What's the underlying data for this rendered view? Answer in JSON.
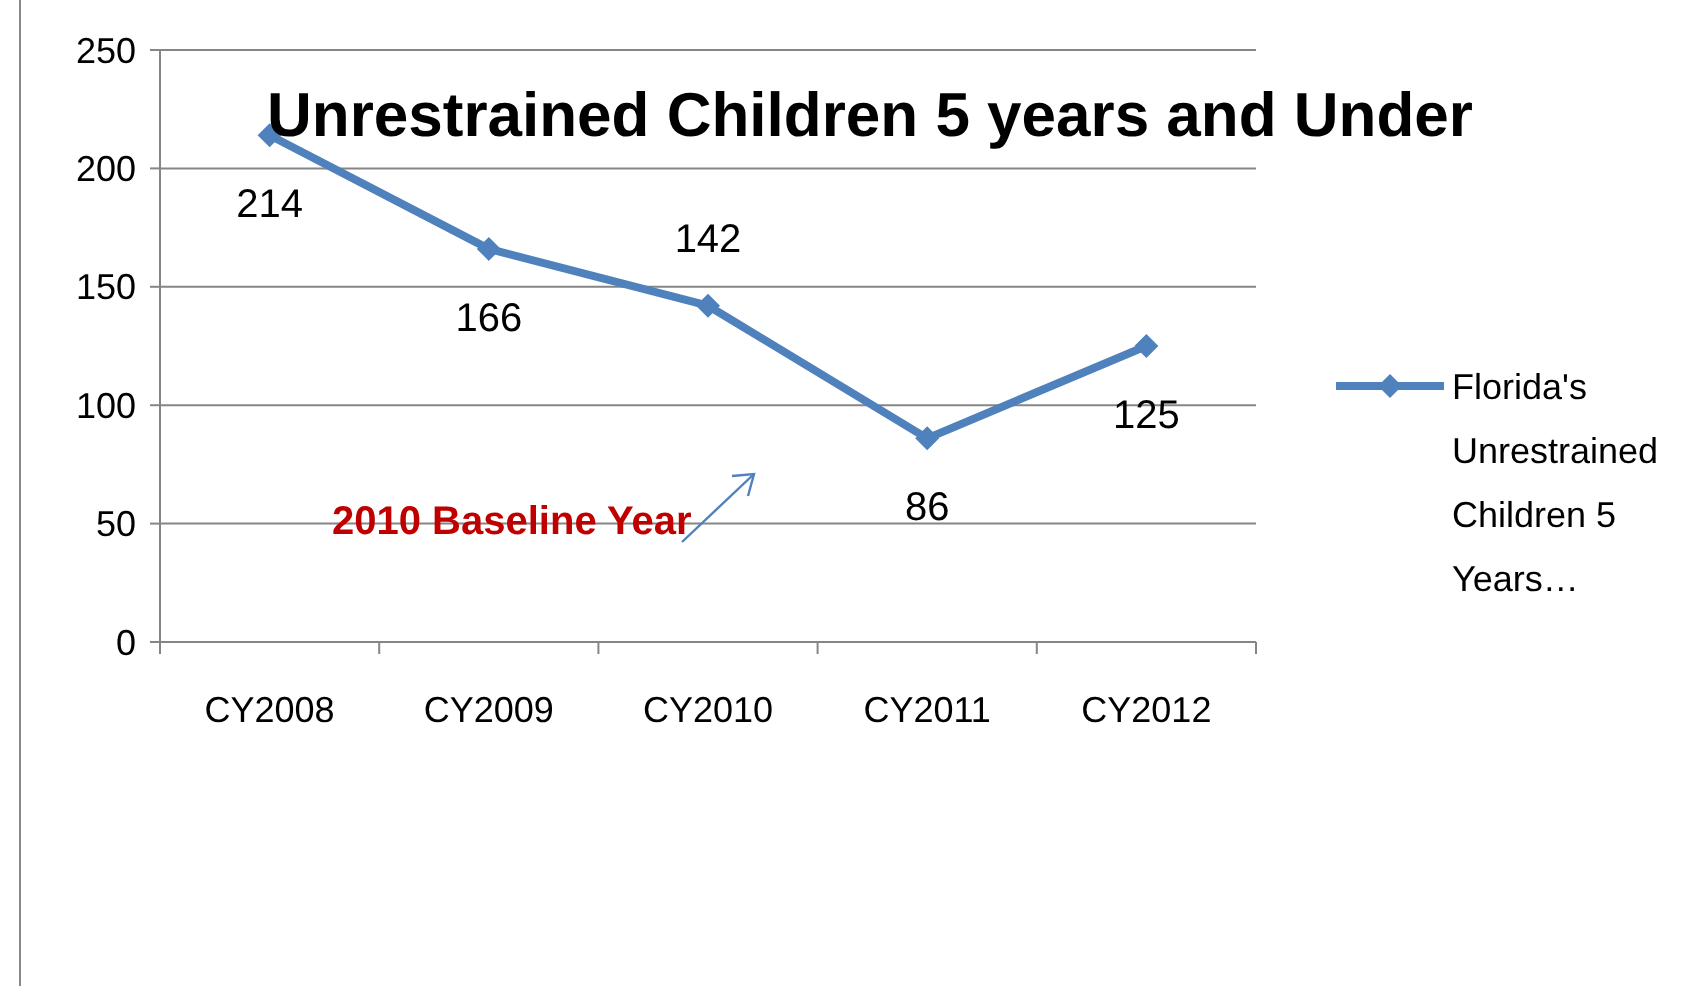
{
  "chart_data": {
    "type": "line",
    "title": "Unrestrained Children 5 years and Under",
    "categories": [
      "CY2008",
      "CY2009",
      "CY2010",
      "CY2011",
      "CY2012"
    ],
    "series": [
      {
        "name": "Florida's Unrestrained Children 5 Years…",
        "color": "#4f81bd",
        "values": [
          214,
          166,
          142,
          86,
          125
        ]
      }
    ],
    "ylim": [
      0,
      250
    ],
    "yticks": [
      0,
      50,
      100,
      150,
      200,
      250
    ],
    "grid": "y",
    "legend": "right",
    "marker": "diamond",
    "data_labels": true,
    "annotations": [
      "2010 Baseline Year"
    ]
  }
}
